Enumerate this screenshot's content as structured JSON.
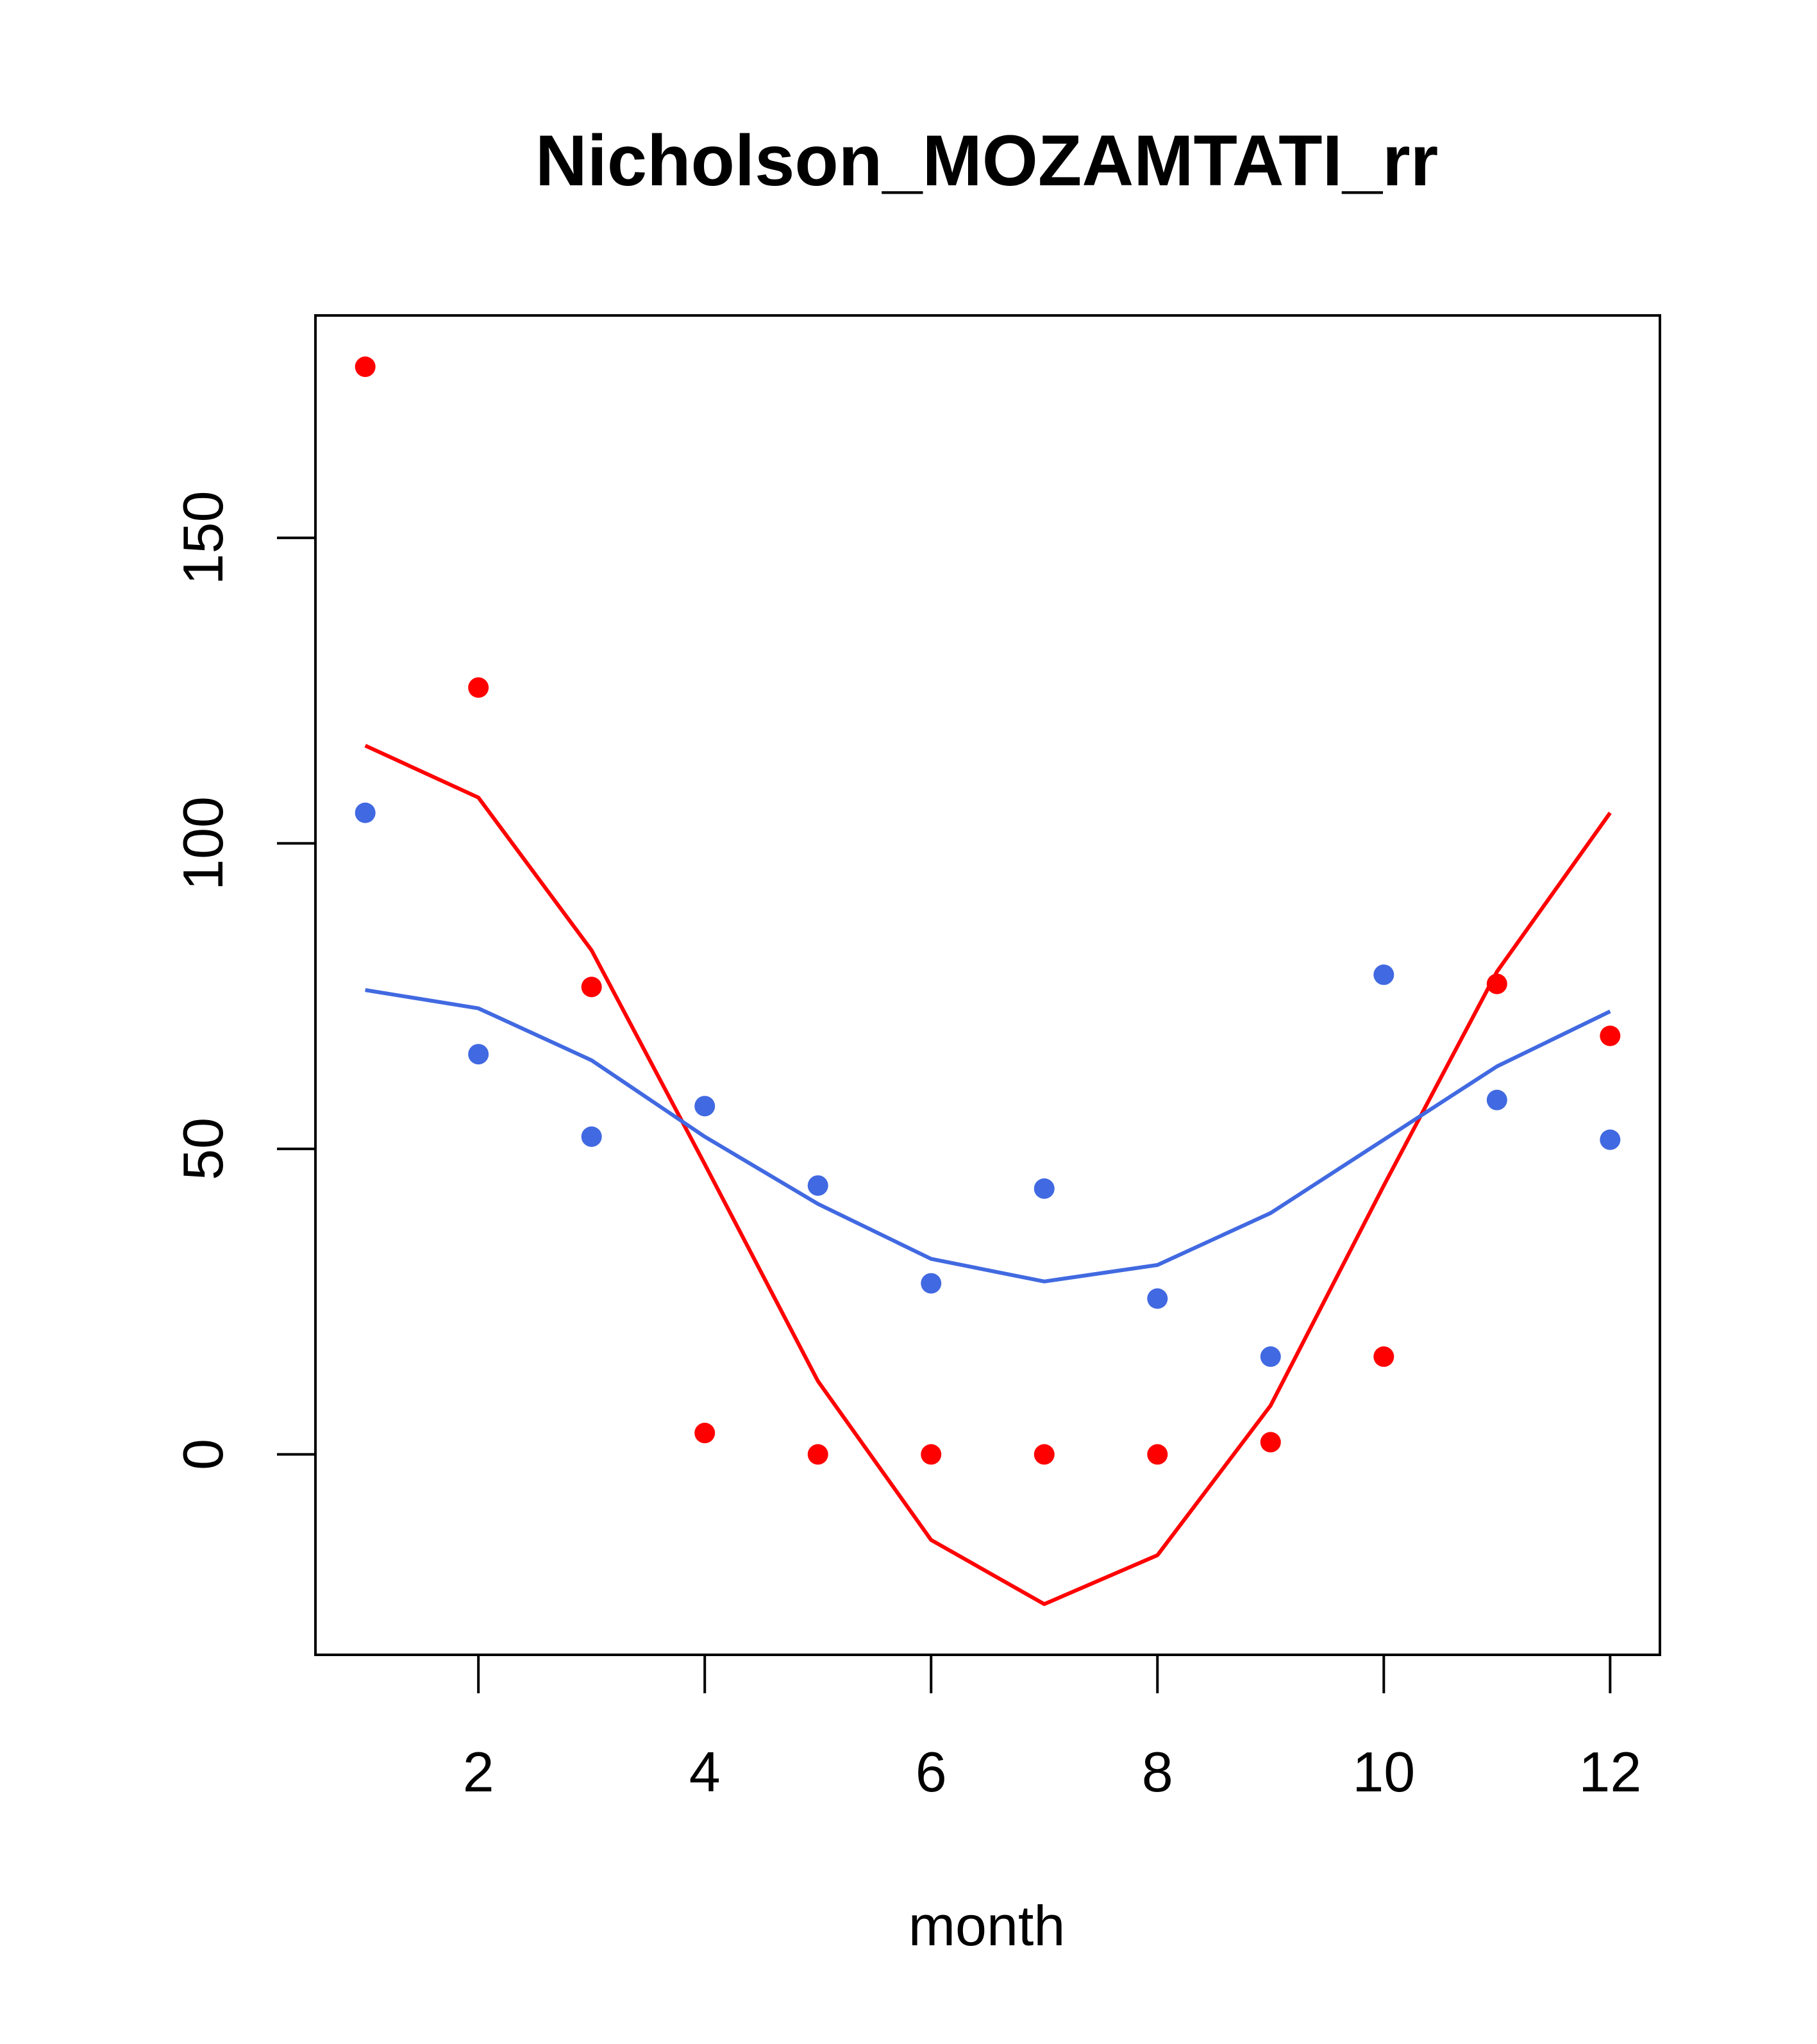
{
  "chart_data": {
    "type": "scatter",
    "title": "Nicholson_MOZAMTATI_rr",
    "xlabel": "month",
    "ylabel": "",
    "xlim": [
      0.56,
      12.44
    ],
    "ylim": [
      -32.8,
      186.4
    ],
    "xticks": [
      2,
      4,
      6,
      8,
      10,
      12
    ],
    "xtick_labels": [
      "2",
      "4",
      "6",
      "8",
      "10",
      "12"
    ],
    "yticks": [
      0,
      50,
      100,
      150
    ],
    "ytick_labels": [
      "0",
      "50",
      "100",
      "150"
    ],
    "x": [
      1,
      2,
      3,
      4,
      5,
      6,
      7,
      8,
      9,
      10,
      11,
      12
    ],
    "series": [
      {
        "name": "red observed",
        "kind": "points",
        "color": "#ff0000",
        "values": [
          178,
          125.5,
          76.5,
          3.5,
          0,
          0,
          0,
          0,
          2,
          16,
          77,
          68.5
        ]
      },
      {
        "name": "red fitted",
        "kind": "line",
        "color": "#ff0000",
        "values": [
          116,
          107.5,
          82.5,
          47.5,
          12,
          -14,
          -24.5,
          -16.5,
          8,
          44,
          79,
          105
        ]
      },
      {
        "name": "blue observed",
        "kind": "points",
        "color": "#4169e1",
        "values": [
          105,
          65.5,
          52,
          57,
          44,
          28,
          43.5,
          25.5,
          16,
          78.5,
          58,
          51.5
        ]
      },
      {
        "name": "blue fitted",
        "kind": "line",
        "color": "#4169e1",
        "values": [
          76,
          73,
          64.5,
          52,
          41,
          32,
          28.3,
          31,
          39.5,
          51.5,
          63.5,
          72.5
        ]
      }
    ]
  }
}
